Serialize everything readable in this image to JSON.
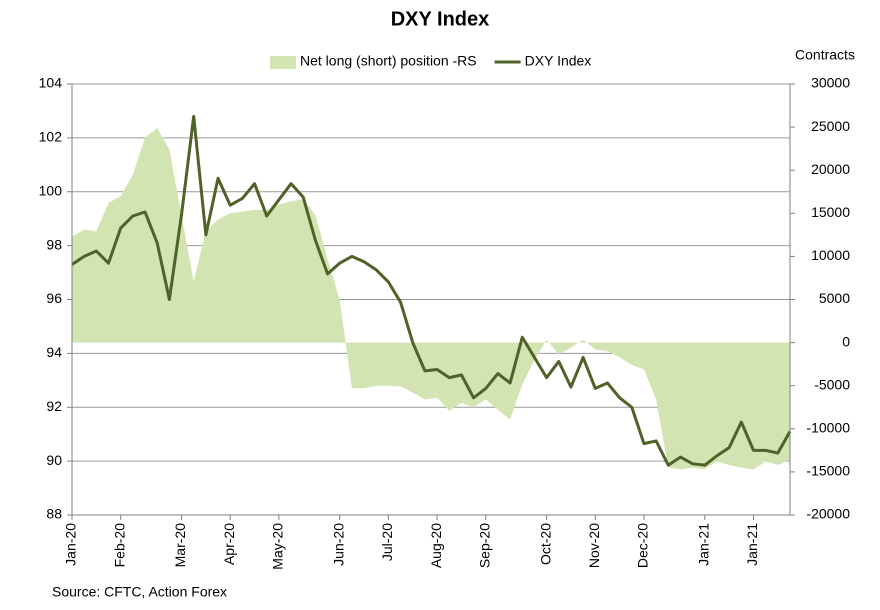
{
  "chart_data": {
    "type": "line",
    "title": "DXY Index",
    "y2_label": "Contracts",
    "source": "Source: CFTC, Action Forex",
    "categories": [
      "Jan-20",
      null,
      null,
      null,
      "Feb-20",
      null,
      null,
      null,
      null,
      "Mar-20",
      null,
      null,
      null,
      "Apr-20",
      null,
      null,
      null,
      "May-20",
      null,
      null,
      null,
      null,
      "Jun-20",
      null,
      null,
      null,
      "Jul-20",
      null,
      null,
      null,
      "Aug-20",
      null,
      null,
      null,
      "Sep-20",
      null,
      null,
      null,
      null,
      "Oct-20",
      null,
      null,
      null,
      "Nov-20",
      null,
      null,
      null,
      "Dec-20",
      null,
      null,
      null,
      null,
      "Jan-21",
      null,
      null,
      null,
      "Jan-21",
      null,
      null,
      null
    ],
    "series": [
      {
        "name": "Net long (short) position -RS",
        "type": "area",
        "axis": "y2",
        "color": "#d3e4b3",
        "values": [
          12300,
          13100,
          12900,
          16200,
          17000,
          19500,
          23800,
          24900,
          22400,
          14800,
          7100,
          12900,
          14300,
          15000,
          15200,
          15400,
          15400,
          16000,
          16400,
          16600,
          14800,
          9700,
          5000,
          -5300,
          -5300,
          -5000,
          -5000,
          -5100,
          -5800,
          -6600,
          -6400,
          -7900,
          -7000,
          -7500,
          -6600,
          -7800,
          -8900,
          -4900,
          -2000,
          350,
          -1400,
          -600,
          350,
          -800,
          -1000,
          -1700,
          -2600,
          -3100,
          -6600,
          -14500,
          -14700,
          -14500,
          -14700,
          -13800,
          -14200,
          -14500,
          -14700,
          -13800,
          -14200,
          -13600
        ]
      },
      {
        "name": "DXY Index",
        "type": "line",
        "axis": "y",
        "color": "#4f6228",
        "values": [
          97.3,
          97.6,
          97.8,
          97.35,
          98.65,
          99.1,
          99.25,
          98.1,
          96.0,
          99.15,
          102.8,
          98.4,
          100.5,
          99.5,
          99.75,
          100.3,
          99.1,
          99.7,
          100.3,
          99.8,
          98.2,
          96.95,
          97.35,
          97.6,
          97.4,
          97.1,
          96.65,
          95.9,
          94.4,
          93.35,
          93.4,
          93.1,
          93.2,
          92.35,
          92.7,
          93.25,
          92.9,
          94.6,
          93.85,
          93.1,
          93.7,
          92.75,
          93.85,
          92.7,
          92.9,
          92.35,
          92.0,
          90.65,
          90.75,
          89.85,
          90.15,
          89.9,
          89.85,
          90.2,
          90.5,
          91.45,
          90.4,
          90.4,
          90.3,
          91.1
        ]
      }
    ],
    "ylim": [
      88,
      104
    ],
    "yticks": [
      88,
      90,
      92,
      94,
      96,
      98,
      100,
      102,
      104
    ],
    "y2lim": [
      -20000,
      30000
    ],
    "y2ticks": [
      -20000,
      -15000,
      -10000,
      -5000,
      0,
      5000,
      10000,
      15000,
      20000,
      25000,
      30000
    ],
    "grid": true,
    "legend": "top"
  }
}
